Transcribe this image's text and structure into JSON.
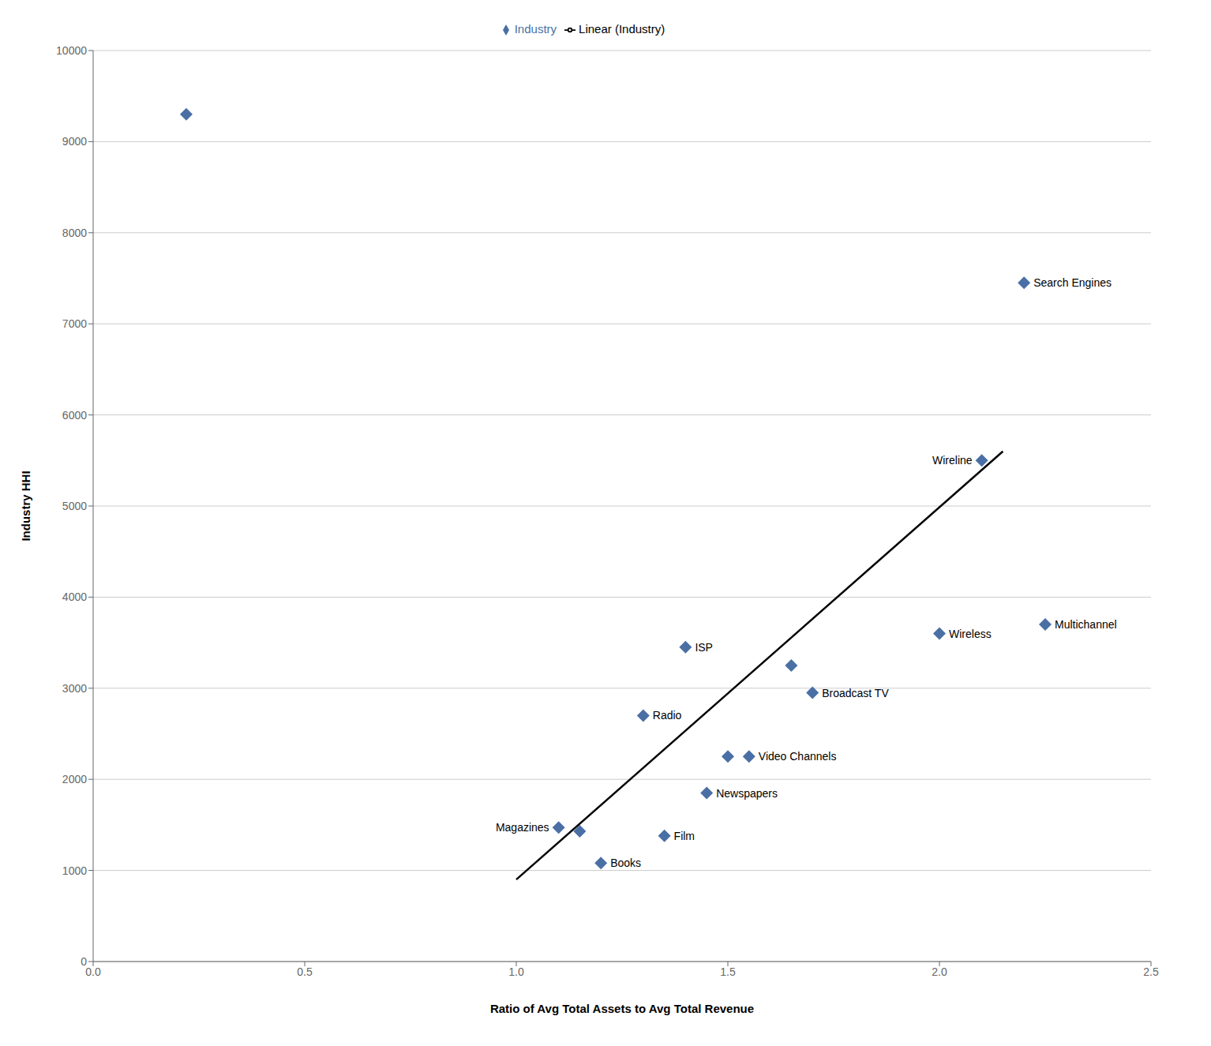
{
  "chart_data": {
    "type": "scatter",
    "xlabel": "Ratio of Avg Total Assets to Avg Total Revenue",
    "ylabel": "Industry HHI",
    "xlim": [
      0,
      2.5
    ],
    "ylim": [
      0,
      10000
    ],
    "xticks": [
      {
        "value": 0,
        "label": "0.0"
      },
      {
        "value": 0.5,
        "label": "0.5"
      },
      {
        "value": 1.0,
        "label": "1.0"
      },
      {
        "value": 1.5,
        "label": "1.5"
      },
      {
        "value": 2.0,
        "label": "2.0"
      },
      {
        "value": 2.5,
        "label": "2.5"
      }
    ],
    "yticks": [
      0,
      1000,
      2000,
      3000,
      4000,
      5000,
      6000,
      7000,
      8000,
      9000,
      10000
    ],
    "grid": "y",
    "legend": "top",
    "series": [
      {
        "name": "Industry",
        "type": "scatter",
        "color": "#4a6fa5",
        "marker": "diamond",
        "x": [
          0.22,
          2.2,
          2.1,
          2.25,
          2.0,
          1.4,
          1.65,
          1.7,
          1.3,
          1.5,
          1.55,
          1.45,
          1.1,
          1.15,
          1.35,
          1.2
        ],
        "values": [
          9300,
          7450,
          5500,
          3700,
          3600,
          3450,
          3250,
          2950,
          2700,
          2250,
          2250,
          1850,
          1470,
          1430,
          1380,
          1080
        ],
        "labels": [
          null,
          "Search Engines",
          "Wireline",
          "Multichannel",
          "Wireless",
          "ISP",
          null,
          "Broadcast TV",
          "Radio",
          null,
          "Video Channels",
          "Newspapers",
          "Magazines",
          null,
          "Film",
          "Books"
        ]
      },
      {
        "name": "Linear (Industry)",
        "type": "line",
        "color": "#000000",
        "line_style": "solid",
        "x": [
          1.0,
          2.15
        ],
        "values": [
          900,
          5600
        ]
      }
    ]
  }
}
